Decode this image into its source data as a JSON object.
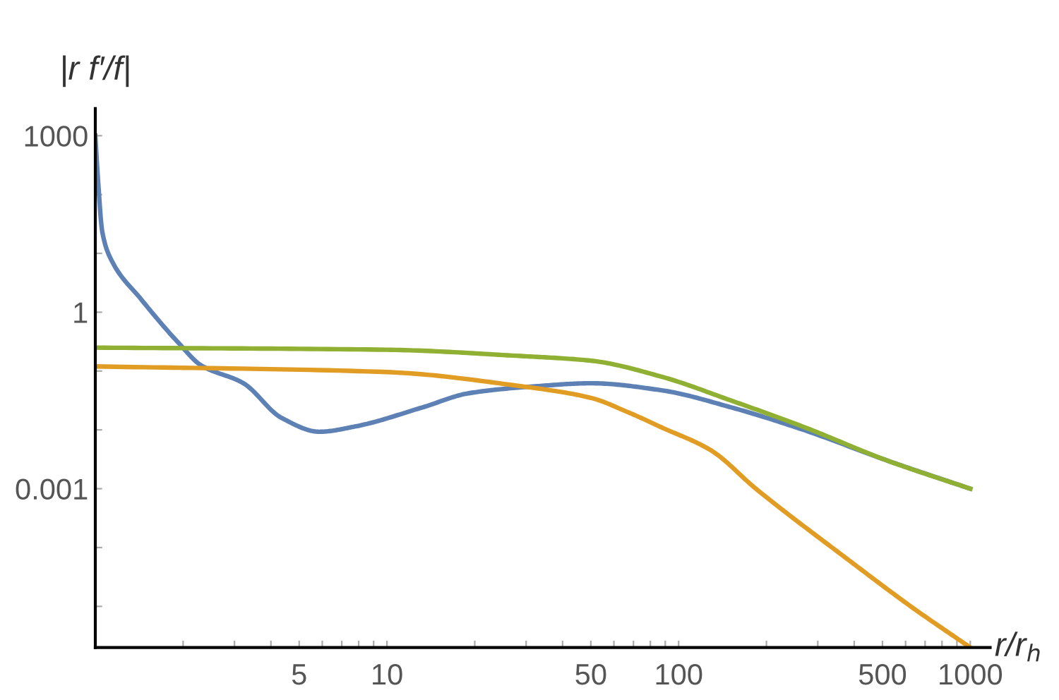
{
  "chart_data": {
    "type": "line",
    "xlabel": "r/r$_{h}$",
    "ylabel": "|r f′/f|",
    "log": "xy",
    "grid": false,
    "marker": "none",
    "line_style": "solid",
    "xlim": [
      1,
      1170
    ],
    "ylim": [
      2e-06,
      2900
    ],
    "xticks": [
      {
        "value": 2,
        "label": null
      },
      {
        "value": 3,
        "label": null
      },
      {
        "value": 4,
        "label": null
      },
      5,
      {
        "value": 6,
        "label": null
      },
      {
        "value": 7,
        "label": null
      },
      {
        "value": 8,
        "label": null
      },
      {
        "value": 9,
        "label": null
      },
      10,
      {
        "value": 20,
        "label": null
      },
      {
        "value": 30,
        "label": null
      },
      {
        "value": 40,
        "label": null
      },
      50,
      {
        "value": 60,
        "label": null
      },
      {
        "value": 70,
        "label": null
      },
      {
        "value": 80,
        "label": null
      },
      {
        "value": 90,
        "label": null
      },
      100,
      {
        "value": 200,
        "label": null
      },
      {
        "value": 300,
        "label": null
      },
      {
        "value": 400,
        "label": null
      },
      500,
      {
        "value": 600,
        "label": null
      },
      {
        "value": 700,
        "label": null
      },
      {
        "value": 800,
        "label": null
      },
      {
        "value": 900,
        "label": null
      },
      1000
    ],
    "yticks": [
      {
        "value": 1e-05,
        "label": null
      },
      {
        "value": 0.0001,
        "label": null
      },
      0.001,
      {
        "value": 0.01,
        "label": null
      },
      {
        "value": 0.1,
        "label": null
      },
      1,
      {
        "value": 10,
        "label": null
      },
      {
        "value": 100,
        "label": null
      },
      1000
    ],
    "series": [
      {
        "color": "#5e81b5",
        "x": [
          1,
          1.02,
          1.057,
          1.14,
          1.43,
          1.93,
          2.3,
          3.22,
          4.35,
          5.87,
          7.83,
          13.2,
          19.1,
          32.2,
          50,
          87.5,
          152,
          265,
          520,
          1000
        ],
        "values": [
          1000,
          200,
          23,
          7.4,
          1.7,
          0.3,
          0.126,
          0.062,
          0.016,
          0.0093,
          0.0115,
          0.024,
          0.042,
          0.055,
          0.062,
          0.047,
          0.024,
          0.0102,
          0.003,
          0.001
        ]
      },
      {
        "color": "#e19c24",
        "x": [
          1,
          10,
          29,
          50,
          67,
          87.5,
          129,
          184,
          385,
          625,
          1000
        ],
        "values": [
          0.12,
          0.096,
          0.055,
          0.035,
          0.02,
          0.011,
          0.0045,
          0.001,
          6e-05,
          1e-05,
          2e-06
        ]
      },
      {
        "color": "#8fb032",
        "x": [
          1,
          10,
          28.8,
          50,
          87.5,
          150,
          265,
          520,
          1000
        ],
        "values": [
          0.25,
          0.23,
          0.18,
          0.15,
          0.08,
          0.032,
          0.0115,
          0.003,
          0.001
        ]
      }
    ]
  }
}
